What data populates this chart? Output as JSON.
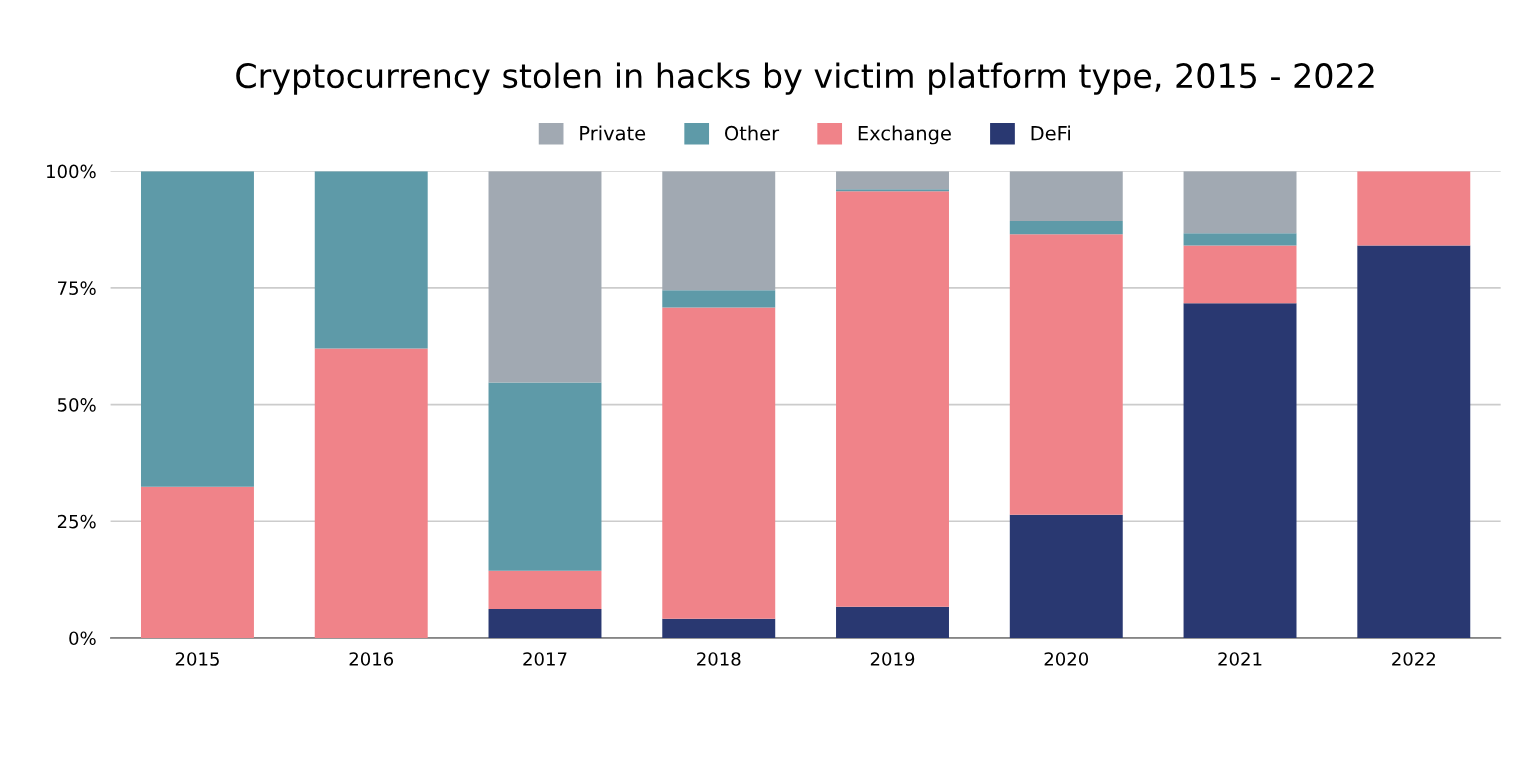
{
  "chart_data": {
    "type": "bar",
    "title": "Cryptocurrency stolen in hacks by victim platform type, 2015 - 2022",
    "categories": [
      "2015",
      "2016",
      "2017",
      "2018",
      "2019",
      "2020",
      "2021",
      "2022"
    ],
    "stacked": true,
    "series": [
      {
        "name": "DeFi",
        "color": "#293871",
        "values": [
          0,
          0,
          6.2,
          4.1,
          6.7,
          26.4,
          71.7,
          84.1
        ]
      },
      {
        "name": "Exchange",
        "color": "#f08389",
        "values": [
          32.4,
          62.0,
          8.2,
          66.7,
          89.0,
          60.1,
          12.4,
          15.9
        ]
      },
      {
        "name": "Other",
        "color": "#5e9aa8",
        "values": [
          67.6,
          38.0,
          40.3,
          3.7,
          0.4,
          2.8,
          2.6,
          0
        ]
      },
      {
        "name": "Private",
        "color": "#a1a9b2",
        "values": [
          null,
          0,
          45.3,
          25.5,
          3.9,
          10.7,
          13.3,
          0
        ]
      }
    ],
    "ylim": [
      0,
      100
    ],
    "yticks": [
      {
        "value": 0,
        "label": "0%"
      },
      {
        "value": 25,
        "label": "25%"
      },
      {
        "value": 50,
        "label": "50%"
      },
      {
        "value": 75,
        "label": "75%"
      },
      {
        "value": 100,
        "label": "100%"
      }
    ],
    "grid": "y",
    "legend": "top"
  }
}
